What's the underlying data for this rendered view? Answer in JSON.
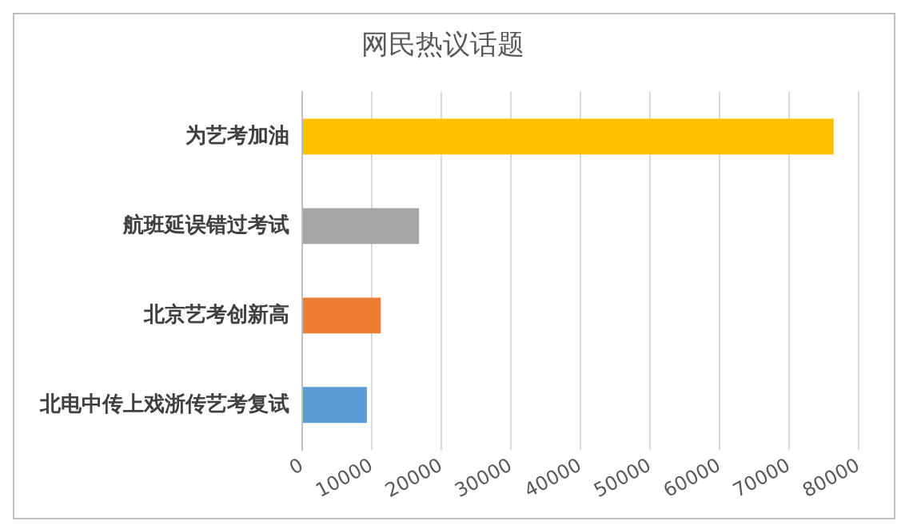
{
  "chart_data": {
    "type": "bar",
    "orientation": "horizontal",
    "title": "网民热议话题",
    "categories": [
      "为艺考加油",
      "航班延误错过考试",
      "北京艺考创新高",
      "北电中传上戏浙传艺考复试"
    ],
    "values": [
      76400,
      16800,
      11300,
      9300
    ],
    "colors": [
      "#ffc000",
      "#a5a5a5",
      "#ed7d31",
      "#5b9bd5"
    ],
    "xlim": [
      0,
      80000
    ],
    "xticks": [
      0,
      10000,
      20000,
      30000,
      40000,
      50000,
      60000,
      70000,
      80000
    ],
    "grid": "x",
    "legend": false
  }
}
